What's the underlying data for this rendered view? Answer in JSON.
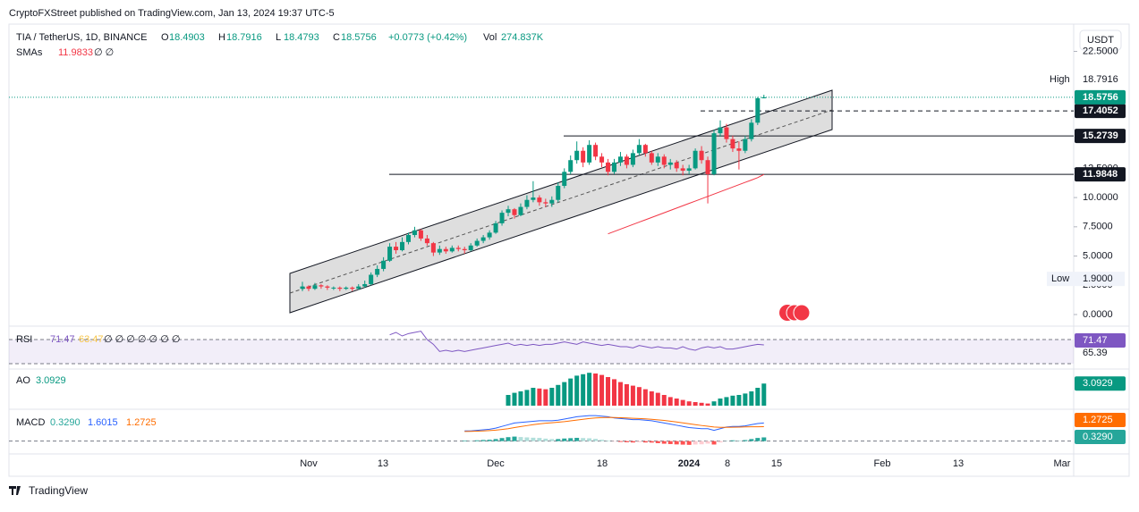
{
  "header": {
    "publisher": "CryptoFXStreet published on TradingView.com, Jan 13, 2024 19:37 UTC-5",
    "footer": "TradingView",
    "currency": "USDT"
  },
  "chart_data": {
    "type": "candlestick",
    "symbol": "TIA / TetherUS, 1D, BINANCE",
    "ohlc_header": {
      "o_label": "O",
      "o": 18.4903,
      "h_label": "H",
      "h": 18.7916,
      "l_label": "L",
      "l": 18.4793,
      "c_label": "C",
      "c": 18.5756,
      "change": "+0.0773 (+0.42%)",
      "vol_label": "Vol",
      "vol": "274.837K"
    },
    "colors": {
      "up": "#089981",
      "down": "#f23645"
    },
    "ylim": [
      0,
      24.6
    ],
    "yticks": [
      {
        "value": 0,
        "label": "0.0000"
      },
      {
        "value": 2.5,
        "label": "2.5000"
      },
      {
        "value": 5,
        "label": "5.0000"
      },
      {
        "value": 7.5,
        "label": "7.5000"
      },
      {
        "value": 10,
        "label": "10.0000"
      },
      {
        "value": 12.5,
        "label": "12.5000"
      },
      {
        "value": 22.5,
        "label": "22.5000"
      }
    ],
    "xticks": [
      "Nov",
      "13",
      "Dec",
      "18",
      "2024",
      "8",
      "15",
      "Feb",
      "13",
      "Mar"
    ],
    "candles": [
      [
        2.2,
        2.8,
        2.0,
        2.4
      ],
      [
        2.4,
        2.5,
        2.0,
        2.2
      ],
      [
        2.2,
        2.7,
        2.1,
        2.5
      ],
      [
        2.5,
        2.6,
        2.2,
        2.4
      ],
      [
        2.4,
        2.5,
        2.1,
        2.3
      ],
      [
        2.3,
        2.4,
        2.1,
        2.3
      ],
      [
        2.3,
        2.4,
        2.0,
        2.2
      ],
      [
        2.2,
        2.4,
        2.1,
        2.3
      ],
      [
        2.3,
        2.4,
        2.0,
        2.2
      ],
      [
        2.2,
        2.6,
        2.1,
        2.4
      ],
      [
        2.4,
        2.9,
        2.3,
        2.6
      ],
      [
        2.6,
        3.6,
        2.5,
        3.4
      ],
      [
        3.4,
        4.2,
        3.2,
        3.9
      ],
      [
        3.9,
        4.9,
        3.7,
        4.6
      ],
      [
        4.6,
        6.1,
        4.5,
        5.8
      ],
      [
        5.8,
        6.2,
        5.2,
        5.5
      ],
      [
        5.5,
        6.6,
        5.4,
        6.2
      ],
      [
        6.2,
        7.0,
        6.0,
        6.8
      ],
      [
        6.8,
        7.5,
        6.6,
        7.2
      ],
      [
        7.2,
        7.3,
        6.3,
        6.5
      ],
      [
        6.5,
        6.8,
        5.9,
        6.1
      ],
      [
        6.1,
        6.2,
        5.0,
        5.3
      ],
      [
        5.3,
        5.9,
        5.1,
        5.6
      ],
      [
        5.6,
        5.8,
        5.2,
        5.4
      ],
      [
        5.4,
        5.9,
        5.3,
        5.7
      ],
      [
        5.7,
        5.9,
        5.4,
        5.6
      ],
      [
        5.6,
        5.8,
        5.2,
        5.5
      ],
      [
        5.5,
        6.1,
        5.4,
        5.9
      ],
      [
        5.9,
        6.5,
        5.8,
        6.3
      ],
      [
        6.3,
        6.8,
        6.1,
        6.6
      ],
      [
        6.6,
        7.2,
        6.4,
        7.0
      ],
      [
        7.0,
        8.0,
        6.9,
        7.8
      ],
      [
        7.8,
        8.9,
        7.6,
        8.7
      ],
      [
        8.7,
        9.3,
        8.4,
        9.0
      ],
      [
        9.0,
        9.1,
        8.2,
        8.5
      ],
      [
        8.5,
        9.5,
        8.4,
        9.2
      ],
      [
        9.2,
        10.2,
        9.0,
        9.8
      ],
      [
        9.8,
        11.4,
        9.6,
        10.0
      ],
      [
        10.0,
        10.2,
        9.3,
        9.6
      ],
      [
        9.6,
        9.9,
        9.2,
        9.5
      ],
      [
        9.5,
        10.1,
        9.2,
        9.8
      ],
      [
        9.8,
        11.3,
        9.6,
        11.0
      ],
      [
        11.0,
        12.5,
        10.8,
        12.2
      ],
      [
        12.2,
        13.6,
        12.0,
        13.2
      ],
      [
        13.2,
        14.8,
        12.9,
        14.0
      ],
      [
        14.0,
        14.3,
        12.6,
        13.0
      ],
      [
        13.0,
        14.9,
        12.8,
        14.5
      ],
      [
        14.5,
        14.7,
        13.2,
        13.5
      ],
      [
        13.5,
        13.8,
        12.6,
        13.0
      ],
      [
        13.0,
        13.3,
        11.9,
        12.2
      ],
      [
        12.2,
        13.3,
        12.0,
        13.0
      ],
      [
        13.0,
        13.9,
        12.7,
        13.5
      ],
      [
        13.5,
        13.7,
        12.5,
        12.8
      ],
      [
        12.8,
        14.1,
        12.6,
        13.8
      ],
      [
        13.8,
        15.0,
        13.6,
        14.5
      ],
      [
        14.5,
        14.6,
        13.5,
        13.8
      ],
      [
        13.8,
        14.0,
        12.8,
        13.0
      ],
      [
        13.0,
        13.8,
        12.7,
        13.5
      ],
      [
        13.5,
        13.7,
        12.5,
        12.8
      ],
      [
        12.8,
        13.3,
        12.4,
        13.0
      ],
      [
        13.0,
        13.2,
        12.2,
        12.5
      ],
      [
        12.5,
        12.8,
        11.9,
        12.3
      ],
      [
        12.3,
        12.8,
        12.0,
        12.5
      ],
      [
        12.5,
        14.2,
        12.4,
        14.0
      ],
      [
        14.0,
        14.4,
        12.9,
        13.2
      ],
      [
        13.2,
        13.5,
        9.5,
        12.0
      ],
      [
        12.0,
        15.8,
        11.9,
        15.5
      ],
      [
        15.5,
        16.6,
        15.2,
        16.0
      ],
      [
        16.0,
        16.3,
        14.7,
        15.0
      ],
      [
        15.0,
        15.3,
        13.9,
        14.2
      ],
      [
        14.2,
        14.8,
        12.4,
        14.0
      ],
      [
        14.0,
        15.3,
        13.8,
        15.0
      ],
      [
        15.0,
        16.7,
        14.8,
        16.4
      ],
      [
        16.4,
        18.6,
        16.2,
        18.49
      ],
      [
        18.4903,
        18.7916,
        18.4793,
        18.5756
      ]
    ],
    "sma": {
      "name": "SMAs",
      "value": 11.9833,
      "extra": "∅ ∅",
      "color": "#f23645",
      "values": [
        null,
        null,
        null,
        null,
        null,
        null,
        null,
        null,
        null,
        null,
        null,
        null,
        null,
        null,
        null,
        null,
        null,
        null,
        null,
        null,
        null,
        null,
        null,
        null,
        null,
        null,
        null,
        null,
        null,
        null,
        null,
        null,
        null,
        null,
        null,
        null,
        null,
        null,
        null,
        null,
        null,
        null,
        null,
        null,
        null,
        null,
        null,
        null,
        null,
        6.9,
        7.1,
        7.3,
        7.5,
        7.7,
        7.9,
        8.1,
        8.3,
        8.5,
        8.7,
        8.9,
        9.1,
        9.3,
        9.5,
        9.7,
        9.9,
        10.1,
        10.3,
        10.5,
        10.7,
        10.9,
        11.1,
        11.3,
        11.5,
        11.7,
        11.9833
      ]
    },
    "levels": [
      {
        "value": 17.4052,
        "label": "17.4052",
        "dashed": true
      },
      {
        "value": 15.2739,
        "label": "15.2739",
        "dashed": false
      },
      {
        "value": 11.9848,
        "label": "11.9848",
        "dashed": false
      }
    ],
    "last_price": {
      "value": 18.5756,
      "label": "18.5756"
    },
    "high": {
      "name": "High",
      "value": 18.7916,
      "label": "18.7916"
    },
    "low": {
      "name": "Low",
      "value": 1.9,
      "label": "1.9000"
    },
    "rsi": {
      "name": "RSI",
      "value": 71.47,
      "ma": 63.47,
      "extra": "∅ ∅ ∅ ∅ ∅ ∅ ∅",
      "band_label": 65.39,
      "ylim": [
        55,
        85
      ],
      "color": "#7e57c2",
      "values": [
        null,
        null,
        null,
        null,
        null,
        null,
        null,
        null,
        null,
        null,
        null,
        null,
        null,
        null,
        80,
        82,
        79,
        81,
        82,
        83,
        76,
        72,
        66,
        67,
        66,
        67,
        66,
        67,
        68,
        69,
        70,
        71,
        72,
        73,
        71,
        72,
        71,
        72,
        71,
        72,
        72,
        73,
        74,
        73,
        72,
        74,
        73,
        72,
        71,
        72,
        71,
        70,
        70,
        69,
        71,
        70,
        69,
        70,
        69,
        69,
        68,
        70,
        68,
        67,
        69,
        70,
        69,
        70,
        68,
        68,
        69,
        70,
        71,
        72,
        71.47
      ]
    },
    "ao": {
      "name": "AO",
      "value": 3.0929,
      "ylim": [
        0,
        5
      ],
      "values": [
        null,
        null,
        null,
        null,
        null,
        null,
        null,
        null,
        null,
        null,
        null,
        null,
        null,
        null,
        null,
        null,
        null,
        null,
        null,
        null,
        null,
        null,
        null,
        null,
        null,
        null,
        null,
        null,
        null,
        null,
        null,
        null,
        null,
        1.5,
        1.8,
        2.0,
        2.2,
        2.5,
        2.4,
        2.3,
        2.5,
        2.9,
        3.3,
        3.8,
        4.2,
        4.4,
        4.6,
        4.5,
        4.3,
        4.0,
        3.7,
        3.3,
        3.0,
        2.8,
        2.6,
        2.3,
        2.0,
        1.8,
        1.5,
        1.2,
        1.0,
        0.8,
        0.6,
        0.5,
        0.4,
        0.3,
        0.6,
        1.0,
        1.2,
        1.4,
        1.5,
        1.7,
        2.0,
        2.5,
        3.0929
      ]
    },
    "macd": {
      "name": "MACD",
      "hist_value": 0.329,
      "hist_label": "0.3290",
      "macd_value": 1.6015,
      "signal_value": 1.2725,
      "ylim": [
        -0.5,
        2.5
      ],
      "macd_line": {
        "color": "#2962ff",
        "values": [
          null,
          null,
          null,
          null,
          null,
          null,
          null,
          null,
          null,
          null,
          null,
          null,
          null,
          null,
          null,
          null,
          null,
          null,
          null,
          null,
          null,
          null,
          null,
          null,
          null,
          null,
          0.9,
          0.9,
          0.95,
          1.0,
          1.05,
          1.15,
          1.3,
          1.45,
          1.6,
          1.65,
          1.7,
          1.75,
          1.8,
          1.8,
          1.8,
          1.85,
          1.95,
          2.05,
          2.15,
          2.2,
          2.25,
          2.25,
          2.2,
          2.15,
          2.05,
          2.0,
          1.95,
          1.9,
          1.9,
          1.85,
          1.8,
          1.7,
          1.6,
          1.5,
          1.4,
          1.3,
          1.2,
          1.15,
          1.1,
          1.1,
          0.95,
          1.1,
          1.25,
          1.3,
          1.3,
          1.35,
          1.45,
          1.55,
          1.6015
        ]
      },
      "signal_line": {
        "color": "#ff6d00",
        "values": [
          null,
          null,
          null,
          null,
          null,
          null,
          null,
          null,
          null,
          null,
          null,
          null,
          null,
          null,
          null,
          null,
          null,
          null,
          null,
          null,
          null,
          null,
          null,
          null,
          null,
          null,
          0.85,
          0.86,
          0.88,
          0.9,
          0.93,
          0.97,
          1.03,
          1.1,
          1.2,
          1.29,
          1.37,
          1.45,
          1.52,
          1.58,
          1.62,
          1.67,
          1.72,
          1.79,
          1.86,
          1.93,
          2.0,
          2.05,
          2.08,
          2.1,
          2.09,
          2.07,
          2.05,
          2.02,
          2.0,
          1.97,
          1.93,
          1.88,
          1.83,
          1.76,
          1.69,
          1.61,
          1.53,
          1.45,
          1.38,
          1.32,
          1.25,
          1.22,
          1.22,
          1.23,
          1.24,
          1.26,
          1.27,
          1.27,
          1.2725
        ]
      },
      "histogram": [
        null,
        null,
        null,
        null,
        null,
        null,
        null,
        null,
        null,
        null,
        null,
        null,
        null,
        null,
        null,
        null,
        null,
        null,
        null,
        null,
        null,
        null,
        null,
        null,
        null,
        null,
        0.05,
        0.04,
        0.07,
        0.1,
        0.12,
        0.18,
        0.27,
        0.35,
        0.4,
        0.36,
        0.33,
        0.3,
        0.28,
        0.22,
        0.18,
        0.18,
        0.23,
        0.26,
        0.29,
        0.27,
        0.25,
        0.2,
        0.12,
        0.05,
        -0.04,
        -0.07,
        -0.1,
        -0.12,
        -0.1,
        -0.12,
        -0.13,
        -0.18,
        -0.23,
        -0.26,
        -0.29,
        -0.31,
        -0.33,
        -0.3,
        -0.28,
        -0.22,
        -0.3,
        -0.12,
        0.03,
        0.07,
        0.06,
        0.09,
        0.18,
        0.28,
        0.329
      ]
    }
  }
}
